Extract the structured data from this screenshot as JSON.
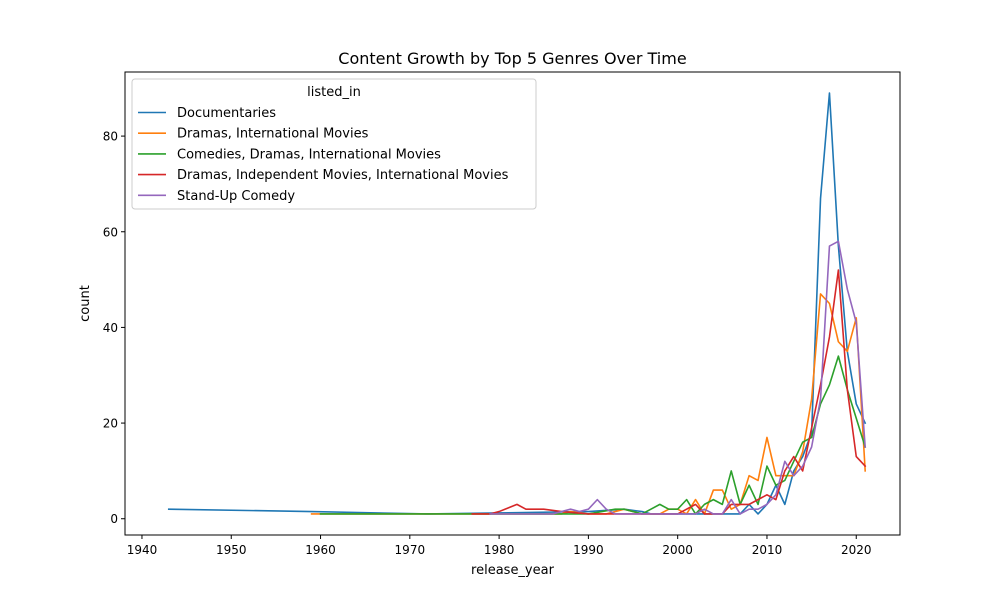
{
  "chart_data": {
    "type": "line",
    "title": "Content Growth by Top 5 Genres Over Time",
    "xlabel": "release_year",
    "ylabel": "count",
    "xlim": [
      1938.1,
      2024.9
    ],
    "ylim": [
      -3.4,
      93.4
    ],
    "xticks": [
      1940,
      1950,
      1960,
      1970,
      1980,
      1990,
      2000,
      2010,
      2020
    ],
    "yticks": [
      0,
      20,
      40,
      60,
      80
    ],
    "grid": false,
    "legend": {
      "title": "listed_in",
      "placement": "top-left"
    },
    "series": [
      {
        "name": "Documentaries",
        "color": "#1f77b4",
        "points": [
          [
            1943,
            2
          ],
          [
            1959,
            1.5
          ],
          [
            1972,
            1
          ],
          [
            1990,
            1.5
          ],
          [
            1994,
            2
          ],
          [
            1996,
            1.5
          ],
          [
            1997,
            1
          ],
          [
            2000,
            1
          ],
          [
            2002,
            1
          ],
          [
            2005,
            1
          ],
          [
            2006,
            1
          ],
          [
            2007,
            1
          ],
          [
            2008,
            3
          ],
          [
            2009,
            1
          ],
          [
            2010,
            3
          ],
          [
            2011,
            7
          ],
          [
            2012,
            3
          ],
          [
            2013,
            10
          ],
          [
            2014,
            13
          ],
          [
            2015,
            18
          ],
          [
            2016,
            67
          ],
          [
            2017,
            89
          ],
          [
            2018,
            57
          ],
          [
            2019,
            35
          ],
          [
            2020,
            24
          ],
          [
            2021,
            20
          ]
        ]
      },
      {
        "name": "Dramas, International Movies",
        "color": "#ff7f0e",
        "points": [
          [
            1959,
            1
          ],
          [
            1965,
            1
          ],
          [
            1972,
            1
          ],
          [
            1980,
            1
          ],
          [
            1985,
            1
          ],
          [
            1987,
            1
          ],
          [
            1988,
            1.5
          ],
          [
            1990,
            1
          ],
          [
            1992,
            1
          ],
          [
            1993,
            1.5
          ],
          [
            1994,
            2
          ],
          [
            1996,
            1
          ],
          [
            1997,
            1
          ],
          [
            1998,
            1
          ],
          [
            1999,
            2
          ],
          [
            2000,
            2
          ],
          [
            2001,
            1
          ],
          [
            2002,
            4
          ],
          [
            2003,
            1
          ],
          [
            2004,
            6
          ],
          [
            2005,
            6
          ],
          [
            2006,
            2
          ],
          [
            2007,
            3
          ],
          [
            2008,
            9
          ],
          [
            2009,
            8
          ],
          [
            2010,
            17
          ],
          [
            2011,
            9
          ],
          [
            2012,
            9
          ],
          [
            2013,
            9
          ],
          [
            2014,
            14
          ],
          [
            2015,
            25
          ],
          [
            2016,
            47
          ],
          [
            2017,
            45
          ],
          [
            2018,
            37
          ],
          [
            2019,
            35
          ],
          [
            2020,
            42
          ],
          [
            2021,
            10
          ]
        ]
      },
      {
        "name": "Comedies, Dramas, International Movies",
        "color": "#2ca02c",
        "points": [
          [
            1960,
            1
          ],
          [
            1972,
            1
          ],
          [
            1978,
            1
          ],
          [
            1985,
            1
          ],
          [
            1990,
            1
          ],
          [
            1993,
            2
          ],
          [
            1994,
            2
          ],
          [
            1995,
            1.5
          ],
          [
            1996,
            1
          ],
          [
            1997,
            2
          ],
          [
            1998,
            3
          ],
          [
            1999,
            2
          ],
          [
            2000,
            2
          ],
          [
            2001,
            4
          ],
          [
            2002,
            1
          ],
          [
            2003,
            3
          ],
          [
            2004,
            4
          ],
          [
            2005,
            3
          ],
          [
            2006,
            10
          ],
          [
            2007,
            3
          ],
          [
            2008,
            7
          ],
          [
            2009,
            3
          ],
          [
            2010,
            11
          ],
          [
            2011,
            7
          ],
          [
            2012,
            8
          ],
          [
            2013,
            12
          ],
          [
            2014,
            16
          ],
          [
            2015,
            17
          ],
          [
            2016,
            24
          ],
          [
            2017,
            28
          ],
          [
            2018,
            34
          ],
          [
            2019,
            27
          ],
          [
            2020,
            21
          ],
          [
            2021,
            15
          ]
        ]
      },
      {
        "name": "Dramas, Independent Movies, International Movies",
        "color": "#d62728",
        "points": [
          [
            1977,
            1
          ],
          [
            1979,
            1
          ],
          [
            1980,
            1.5
          ],
          [
            1982,
            3
          ],
          [
            1983,
            2
          ],
          [
            1985,
            2
          ],
          [
            1987,
            1.5
          ],
          [
            1990,
            1
          ],
          [
            1993,
            1
          ],
          [
            2000,
            1
          ],
          [
            2002,
            3
          ],
          [
            2003,
            1
          ],
          [
            2005,
            1
          ],
          [
            2006,
            3
          ],
          [
            2007,
            3
          ],
          [
            2008,
            3
          ],
          [
            2009,
            4
          ],
          [
            2010,
            5
          ],
          [
            2011,
            4
          ],
          [
            2012,
            10
          ],
          [
            2013,
            13
          ],
          [
            2014,
            10
          ],
          [
            2015,
            19
          ],
          [
            2016,
            28
          ],
          [
            2017,
            38
          ],
          [
            2018,
            52
          ],
          [
            2019,
            27
          ],
          [
            2020,
            13
          ],
          [
            2021,
            11
          ]
        ]
      },
      {
        "name": "Stand-Up Comedy",
        "color": "#9467bd",
        "points": [
          [
            1979,
            1
          ],
          [
            1983,
            1
          ],
          [
            1986,
            1
          ],
          [
            1988,
            2
          ],
          [
            1989,
            1.5
          ],
          [
            1990,
            2
          ],
          [
            1991,
            4
          ],
          [
            1992,
            2
          ],
          [
            1993,
            1
          ],
          [
            2000,
            1
          ],
          [
            2002,
            1
          ],
          [
            2003,
            2
          ],
          [
            2004,
            1
          ],
          [
            2005,
            1
          ],
          [
            2006,
            4
          ],
          [
            2007,
            1
          ],
          [
            2008,
            2
          ],
          [
            2009,
            2
          ],
          [
            2010,
            3
          ],
          [
            2011,
            5
          ],
          [
            2012,
            12
          ],
          [
            2013,
            9
          ],
          [
            2014,
            11
          ],
          [
            2015,
            15
          ],
          [
            2016,
            25
          ],
          [
            2017,
            57
          ],
          [
            2018,
            58
          ],
          [
            2019,
            48
          ],
          [
            2020,
            41
          ],
          [
            2021,
            15
          ]
        ]
      }
    ]
  }
}
